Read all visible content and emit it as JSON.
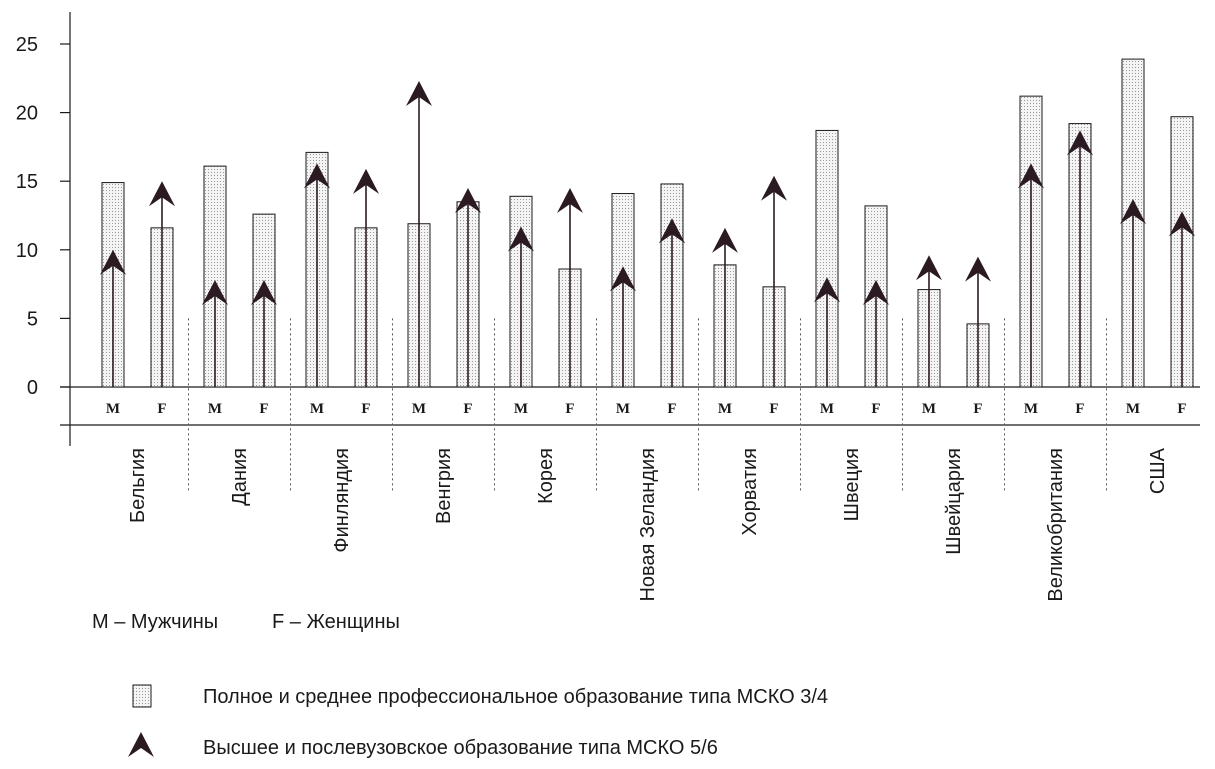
{
  "chart_data": {
    "type": "bar",
    "ylim": [
      0,
      25
    ],
    "yticks": [
      "0",
      "5",
      "10",
      "15",
      "20",
      "25"
    ],
    "gender_labels": {
      "male": "M",
      "female": "F"
    },
    "note": {
      "male": "M – Мужчины",
      "female": "F – Женщины"
    },
    "legend": {
      "bars": "Полное и среднее профессиональное образование типа МСКО 3/4",
      "arrows": "Высшее и послевузовское образование типа МСКО 5/6"
    },
    "colors": {
      "bar_fill": "#f4f4f4",
      "bar_dots": "#9a9a9a",
      "arrow": "#2b1a22",
      "line": "#1a1a1a"
    },
    "categories": [
      "Бельгия",
      "Дания",
      "Финляндия",
      "Венгрия",
      "Корея",
      "Новая Зеландия",
      "Хорватия",
      "Швеция",
      "Швейцария",
      "Великобритания",
      "США"
    ],
    "series": [
      {
        "name": "Полное и среднее профессиональное образование типа МСКО 3/4",
        "values_male": [
          14.9,
          16.1,
          17.1,
          11.9,
          13.9,
          14.1,
          8.9,
          18.7,
          7.1,
          21.2,
          23.9
        ],
        "values_female": [
          11.6,
          12.6,
          11.6,
          13.5,
          8.6,
          14.8,
          7.3,
          13.2,
          4.6,
          19.2,
          19.7
        ]
      },
      {
        "name": "Высшее и послевузовское образование типа МСКО 5/6",
        "values_male": [
          10.0,
          7.8,
          16.3,
          22.3,
          11.7,
          8.8,
          11.6,
          8.0,
          9.6,
          16.3,
          13.7
        ],
        "values_female": [
          15.0,
          7.8,
          15.9,
          14.5,
          14.5,
          12.3,
          15.4,
          7.8,
          9.5,
          18.7,
          12.8
        ]
      }
    ]
  }
}
